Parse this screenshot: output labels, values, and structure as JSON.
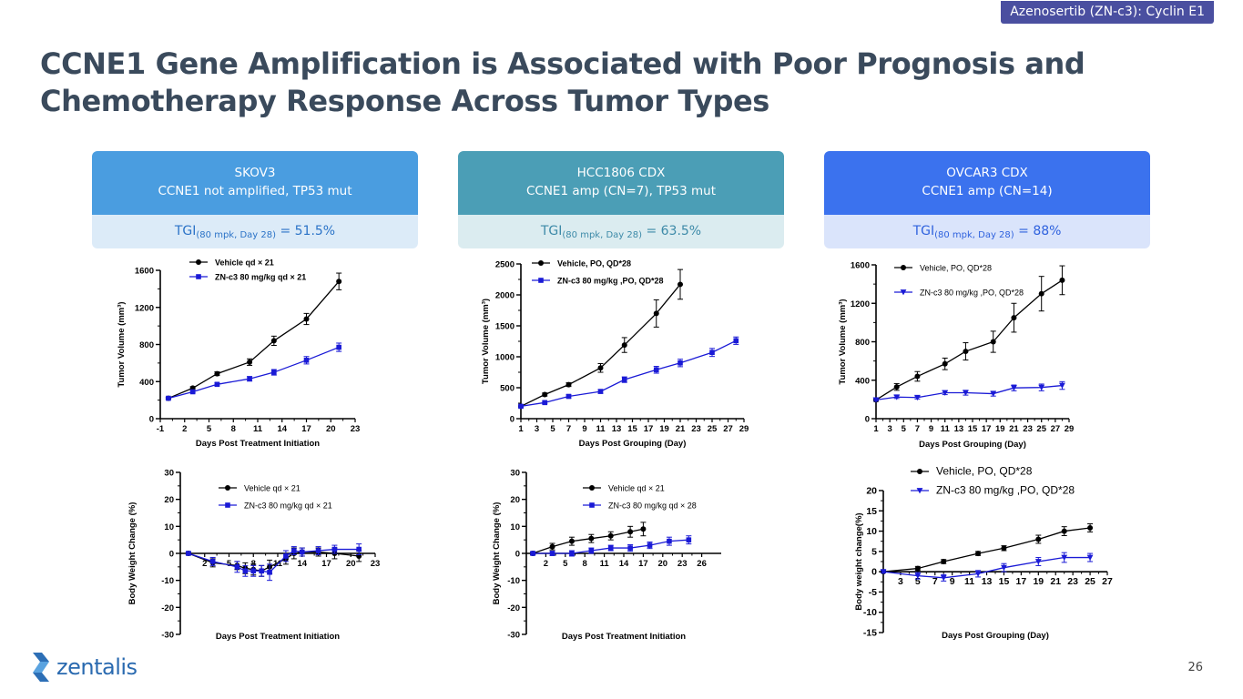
{
  "header": {
    "tag": "Azenosertib (ZN-c3): Cyclin E1"
  },
  "title_lines": [
    "CCNE1 Gene Amplification is Associated with Poor Prognosis and",
    "Chemotherapy Response Across Tumor Types"
  ],
  "cards": [
    {
      "line1": "SKOV3",
      "line2": "CCNE1 not amplified, TP53 mut",
      "tgi_prefix": "TGI",
      "tgi_sub": "(80 mpk, Day 28)",
      "tgi_value": " = 51.5%",
      "head_color": "#4a9de0",
      "tgi_bg": "#dcebf8",
      "tgi_color": "#2b73c7"
    },
    {
      "line1": "HCC1806 CDX",
      "line2": "CCNE1 amp (CN=7), TP53 mut",
      "tgi_prefix": "TGI",
      "tgi_sub": "(80 mpk, Day 28)",
      "tgi_value": " = 63.5%",
      "head_color": "#4b9eb6",
      "tgi_bg": "#dbecf0",
      "tgi_color": "#3d8aa8"
    },
    {
      "line1": "OVCAR3 CDX",
      "line2": "CCNE1 amp (CN=14)",
      "tgi_prefix": "TGI",
      "tgi_sub": "(80 mpk, Day 28)",
      "tgi_value": " = 88%",
      "head_color": "#3b72ee",
      "tgi_bg": "#dae4fb",
      "tgi_color": "#2f62de"
    }
  ],
  "colors": {
    "vehicle": "#000000",
    "treated": "#1a1ad6"
  },
  "chart_data": [
    {
      "type": "line",
      "id": "skov3-volume",
      "ylabel": "Tumor Volume (mm³)",
      "xlabel": "Days Post Treatment Initiation",
      "xlim": [
        -1,
        23
      ],
      "ylim": [
        0,
        1600
      ],
      "xticks": [
        -1,
        2,
        5,
        8,
        11,
        14,
        17,
        20,
        23
      ],
      "yticks": [
        0,
        400,
        800,
        1200,
        1600
      ],
      "legend": "top-left",
      "series": [
        {
          "name": "Vehicle qd × 21",
          "marker": "circle",
          "x": [
            0,
            3,
            6,
            10,
            13,
            17,
            21
          ],
          "y": [
            220,
            330,
            485,
            610,
            840,
            1075,
            1480
          ],
          "err": [
            10,
            15,
            20,
            35,
            50,
            60,
            90
          ]
        },
        {
          "name": "ZN-c3 80 mg/kg qd × 21",
          "marker": "square",
          "x": [
            0,
            3,
            6,
            10,
            13,
            17,
            21
          ],
          "y": [
            220,
            290,
            370,
            430,
            500,
            630,
            770
          ],
          "err": [
            10,
            12,
            15,
            25,
            30,
            40,
            45
          ]
        }
      ]
    },
    {
      "type": "line",
      "id": "hcc1806-volume",
      "ylabel": "Tumor Volume (mm³)",
      "xlabel": "Days Post Grouping (Day)",
      "xlim": [
        1,
        29
      ],
      "ylim": [
        0,
        2500
      ],
      "xticks": [
        1,
        3,
        5,
        7,
        9,
        11,
        13,
        15,
        17,
        19,
        21,
        23,
        25,
        27,
        29
      ],
      "yticks": [
        0,
        500,
        1000,
        1500,
        2000,
        2500
      ],
      "legend": "top-left",
      "series": [
        {
          "name": "Vehicle, PO, QD*28",
          "marker": "circle",
          "x": [
            1,
            4,
            7,
            11,
            14,
            18,
            21
          ],
          "y": [
            200,
            390,
            550,
            820,
            1190,
            1700,
            2170
          ],
          "err": [
            20,
            25,
            30,
            70,
            120,
            220,
            240
          ]
        },
        {
          "name": "ZN-c3 80 mg/kg ,PO, QD*28",
          "marker": "square",
          "x": [
            1,
            4,
            7,
            11,
            14,
            18,
            21,
            25,
            28
          ],
          "y": [
            200,
            260,
            360,
            440,
            630,
            790,
            900,
            1070,
            1260
          ],
          "err": [
            15,
            20,
            25,
            30,
            45,
            55,
            60,
            65,
            60
          ]
        }
      ]
    },
    {
      "type": "line",
      "id": "ovcar3-volume",
      "ylabel": "Tumor Volume (mm³)",
      "xlabel": "Days Post Grouping (Day)",
      "xlim": [
        1,
        29
      ],
      "ylim": [
        0,
        1600
      ],
      "xticks": [
        1,
        3,
        5,
        7,
        9,
        11,
        13,
        15,
        17,
        19,
        21,
        23,
        25,
        27,
        29
      ],
      "yticks": [
        0,
        400,
        800,
        1200,
        1600
      ],
      "legend": "top-left",
      "series": [
        {
          "name": "Vehicle, PO, QD*28",
          "marker": "circle",
          "x": [
            1,
            4,
            7,
            11,
            14,
            18,
            21,
            25,
            28
          ],
          "y": [
            195,
            330,
            440,
            570,
            700,
            800,
            1050,
            1300,
            1440
          ],
          "err": [
            15,
            35,
            50,
            60,
            90,
            110,
            150,
            180,
            150
          ]
        },
        {
          "name": "ZN-c3 80 mg/kg ,PO, QD*28",
          "marker": "triangle-down",
          "x": [
            1,
            4,
            7,
            11,
            14,
            18,
            21,
            25,
            28
          ],
          "y": [
            195,
            225,
            220,
            270,
            270,
            260,
            320,
            325,
            345
          ],
          "err": [
            10,
            15,
            15,
            20,
            25,
            25,
            30,
            35,
            40
          ]
        }
      ]
    },
    {
      "type": "line",
      "id": "skov3-bodyweight",
      "ylabel": "Body Weight Change (%)",
      "xlabel": "Days Post Treatment Initiation",
      "xlim": [
        -1,
        23
      ],
      "ylim": [
        -30,
        30
      ],
      "xticks": [
        2,
        5,
        8,
        11,
        14,
        17,
        20,
        23
      ],
      "yticks": [
        -30,
        -20,
        -10,
        0,
        10,
        20,
        30
      ],
      "legend": "top-center",
      "series": [
        {
          "name": "Vehicle qd × 21",
          "marker": "circle",
          "x": [
            0,
            3,
            6,
            7,
            8,
            9,
            10,
            12,
            13,
            14,
            16,
            18,
            21
          ],
          "y": [
            0,
            -3.5,
            -4.5,
            -5.5,
            -6,
            -6.5,
            -5,
            -2,
            0,
            0.5,
            0.5,
            0,
            -1
          ],
          "err": [
            0.5,
            1.5,
            1.5,
            2,
            2,
            2,
            2.5,
            2,
            2,
            1.5,
            1.5,
            2,
            2
          ]
        },
        {
          "name": "ZN-c3 80 mg/kg qd × 21",
          "marker": "square",
          "x": [
            0,
            3,
            6,
            7,
            8,
            9,
            10,
            12,
            13,
            14,
            16,
            18,
            21
          ],
          "y": [
            0,
            -3,
            -5,
            -6.5,
            -6.5,
            -6.5,
            -7,
            -1,
            1,
            0.5,
            1,
            1.5,
            1.5
          ],
          "err": [
            0.5,
            1.5,
            2,
            2,
            2,
            2,
            3,
            2,
            1.5,
            1.5,
            1.5,
            1.5,
            2
          ]
        }
      ]
    },
    {
      "type": "line",
      "id": "hcc1806-bodyweight",
      "ylabel": "Body Weight Change (%)",
      "xlabel": "Days Post Treatment Initiation",
      "xlim": [
        -1,
        29
      ],
      "ylim": [
        -30,
        30
      ],
      "xticks": [
        2,
        5,
        8,
        11,
        14,
        17,
        20,
        23,
        26
      ],
      "yticks": [
        -30,
        -20,
        -10,
        0,
        10,
        20,
        30
      ],
      "legend": "top-center",
      "series": [
        {
          "name": "Vehicle qd × 21",
          "marker": "circle",
          "x": [
            0,
            3,
            6,
            9,
            12,
            15,
            17
          ],
          "y": [
            0,
            2.5,
            4.5,
            5.5,
            6.5,
            8,
            9
          ],
          "err": [
            0.5,
            1.2,
            1.5,
            1.5,
            1.5,
            2,
            2.5
          ]
        },
        {
          "name": "ZN-c3 80 mg/kg qd × 28",
          "marker": "square",
          "x": [
            0,
            3,
            6,
            9,
            12,
            15,
            18,
            21,
            24
          ],
          "y": [
            0,
            0,
            0,
            1,
            2,
            2,
            3,
            4.5,
            5
          ],
          "err": [
            0.5,
            0.8,
            1,
            1,
            1,
            1.2,
            1.2,
            1.5,
            1.5
          ]
        }
      ]
    },
    {
      "type": "line",
      "id": "ovcar3-bodyweight",
      "ylabel": "Body weight change(%)",
      "xlabel": "Days Post Grouping (Day)",
      "xlim": [
        1,
        27
      ],
      "ylim": [
        -15,
        20
      ],
      "xticks": [
        3,
        5,
        7,
        9,
        11,
        13,
        15,
        17,
        19,
        21,
        23,
        25,
        27
      ],
      "yticks": [
        -15,
        -10,
        -5,
        0,
        5,
        10,
        15,
        20
      ],
      "legend": "top-left",
      "series": [
        {
          "name": "Vehicle, PO, QD*28",
          "marker": "circle",
          "x": [
            1,
            5,
            8,
            12,
            15,
            19,
            22,
            25
          ],
          "y": [
            0,
            0.8,
            2.5,
            4.5,
            5.8,
            8,
            10,
            10.8
          ],
          "err": [
            0.3,
            0.5,
            0.5,
            0.5,
            0.6,
            1,
            1.1,
            1
          ]
        },
        {
          "name": "ZN-c3 80 mg/kg ,PO, QD*28",
          "marker": "triangle-down",
          "x": [
            1,
            5,
            8,
            12,
            15,
            19,
            22,
            25
          ],
          "y": [
            0,
            -1,
            -1.5,
            -0.5,
            1,
            2.5,
            3.5,
            3.5
          ],
          "err": [
            0.3,
            0.8,
            0.8,
            0.8,
            1,
            1,
            1.2,
            1
          ]
        }
      ]
    }
  ],
  "footer": {
    "brand": "zentalis",
    "page_number": "26"
  }
}
